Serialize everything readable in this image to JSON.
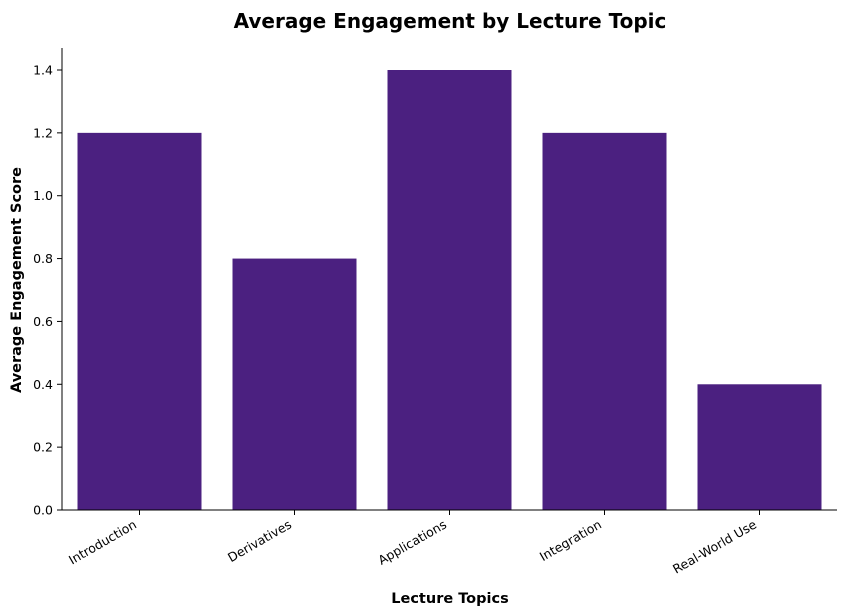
{
  "chart_data": {
    "type": "bar",
    "title": "Average Engagement by Lecture Topic",
    "xlabel": "Lecture Topics",
    "ylabel": "Average Engagement Score",
    "categories": [
      "Introduction",
      "Derivatives",
      "Applications",
      "Integration",
      "Real-World Use"
    ],
    "values": [
      1.2,
      0.8,
      1.4,
      1.2,
      0.4
    ],
    "ylim": [
      0,
      1.47
    ],
    "yticks": [
      0.0,
      0.2,
      0.4,
      0.6,
      0.8,
      1.0,
      1.2,
      1.4
    ],
    "ytick_labels": [
      "0.0",
      "0.2",
      "0.4",
      "0.6",
      "0.8",
      "1.0",
      "1.2",
      "1.4"
    ],
    "bar_color": "#4b2080",
    "grid": false,
    "legend": "none",
    "spines": [
      "left",
      "bottom"
    ]
  }
}
